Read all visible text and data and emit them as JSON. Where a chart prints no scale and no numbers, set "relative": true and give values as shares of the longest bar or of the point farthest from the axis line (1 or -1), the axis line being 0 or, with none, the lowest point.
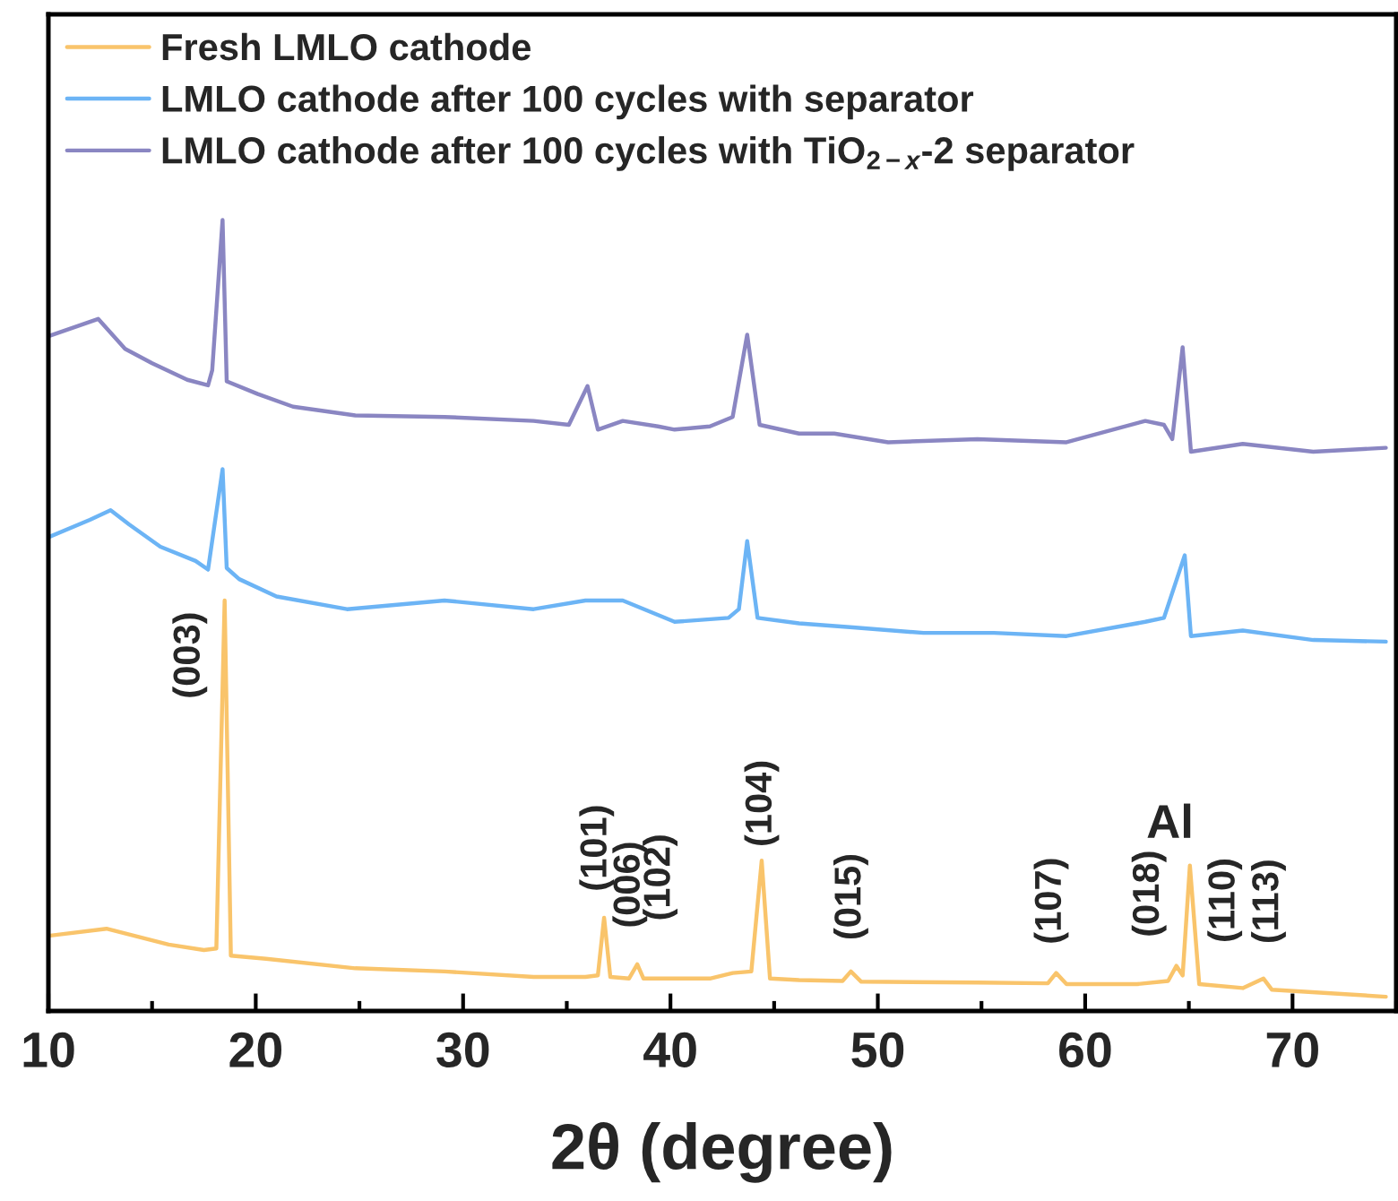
{
  "chart_data": {
    "type": "line",
    "xlabel": "2θ (degree)",
    "relative": true,
    "xlim": [
      10,
      75
    ],
    "xticks": [
      10,
      20,
      30,
      40,
      50,
      60,
      70,
      {
        "value": 15,
        "label": null
      },
      {
        "value": 25,
        "label": null
      },
      {
        "value": 35,
        "label": null
      },
      {
        "value": 45,
        "label": null
      },
      {
        "value": 55,
        "label": null
      },
      {
        "value": 65,
        "label": null
      },
      {
        "value": 75,
        "label": null
      }
    ],
    "legend": "top left",
    "grid": false,
    "series": [
      {
        "name": "Fresh LMLO cathode",
        "color": "#f9c46b",
        "x": [
          10,
          12.8,
          15.8,
          17.5,
          18.1,
          18.5,
          18.8,
          20.5,
          24.8,
          29.1,
          33.4,
          35.9,
          36.5,
          36.8,
          37.1,
          38.0,
          38.4,
          38.7,
          41.9,
          43.0,
          43.9,
          44.4,
          44.8,
          46.2,
          48.3,
          48.7,
          49.2,
          54.8,
          58.2,
          58.6,
          59.1,
          62.5,
          64.0,
          64.4,
          64.7,
          65.05,
          65.5,
          67.6,
          68.6,
          69.0,
          74.5
        ],
        "values": [
          0.095,
          0.104,
          0.084,
          0.077,
          0.079,
          0.519,
          0.07,
          0.066,
          0.054,
          0.05,
          0.043,
          0.043,
          0.045,
          0.118,
          0.043,
          0.041,
          0.059,
          0.041,
          0.041,
          0.048,
          0.05,
          0.19,
          0.041,
          0.039,
          0.038,
          0.05,
          0.037,
          0.036,
          0.035,
          0.048,
          0.034,
          0.034,
          0.038,
          0.057,
          0.045,
          0.184,
          0.034,
          0.029,
          0.041,
          0.027,
          0.018
        ]
      },
      {
        "name": "LMLO cathode after 100 cycles with separator",
        "color": "#6cb4f5",
        "x": [
          10,
          12.0,
          13.0,
          13.9,
          15.4,
          17.1,
          17.7,
          18.4,
          18.6,
          19.2,
          21.0,
          24.4,
          29.1,
          33.4,
          35.9,
          37.7,
          40.2,
          42.8,
          43.3,
          43.7,
          44.2,
          46.2,
          48.8,
          52.2,
          55.6,
          59.1,
          62.9,
          63.8,
          64.8,
          65.1,
          67.6,
          71.0,
          74.5
        ],
        "values": [
          0.599,
          0.621,
          0.633,
          0.615,
          0.587,
          0.569,
          0.558,
          0.685,
          0.56,
          0.546,
          0.524,
          0.508,
          0.519,
          0.508,
          0.519,
          0.519,
          0.492,
          0.497,
          0.508,
          0.594,
          0.497,
          0.49,
          0.485,
          0.478,
          0.478,
          0.474,
          0.492,
          0.497,
          0.576,
          0.474,
          0.481,
          0.469,
          0.467
        ]
      },
      {
        "name": "LMLO cathode after 100 cycles with TiO$_{2−x}$-2 separator",
        "color": "#8a86c2",
        "x": [
          10,
          12.4,
          13.7,
          15.0,
          16.7,
          17.7,
          17.9,
          18.4,
          18.6,
          20.1,
          21.8,
          24.8,
          29.1,
          33.4,
          35.1,
          36.0,
          36.5,
          37.7,
          39.4,
          40.2,
          41.9,
          43.0,
          43.7,
          44.3,
          46.2,
          47.9,
          50.5,
          54.8,
          59.1,
          62.9,
          63.8,
          64.2,
          64.7,
          65.1,
          67.6,
          71.0,
          74.5
        ],
        "values": [
          0.853,
          0.875,
          0.837,
          0.819,
          0.798,
          0.791,
          0.81,
          1.0,
          0.796,
          0.78,
          0.764,
          0.753,
          0.751,
          0.746,
          0.741,
          0.79,
          0.735,
          0.746,
          0.739,
          0.735,
          0.739,
          0.751,
          0.855,
          0.741,
          0.73,
          0.73,
          0.719,
          0.723,
          0.719,
          0.746,
          0.741,
          0.723,
          0.839,
          0.707,
          0.717,
          0.707,
          0.712
        ]
      }
    ],
    "annotations": [
      {
        "text": "(003)",
        "x": 18.5,
        "y": 0.519
      },
      {
        "text": "(101)",
        "x": 36.8,
        "y": 0.118
      },
      {
        "text": "(006)",
        "x": 38.4,
        "y": 0.059
      },
      {
        "text": "(102)",
        "x": 39.5,
        "y": 0.043
      },
      {
        "text": "(104)",
        "x": 44.4,
        "y": 0.19
      },
      {
        "text": "(015)",
        "x": 48.7,
        "y": 0.05
      },
      {
        "text": "(107)",
        "x": 58.6,
        "y": 0.048
      },
      {
        "text": "(018)",
        "x": 64.4,
        "y": 0.057
      },
      {
        "text": "Al",
        "x": 65.05,
        "y": 0.184
      },
      {
        "text": "(110)",
        "x": 65.05,
        "y": 0.184
      },
      {
        "text": "(113)",
        "x": 68.6,
        "y": 0.041
      }
    ]
  }
}
